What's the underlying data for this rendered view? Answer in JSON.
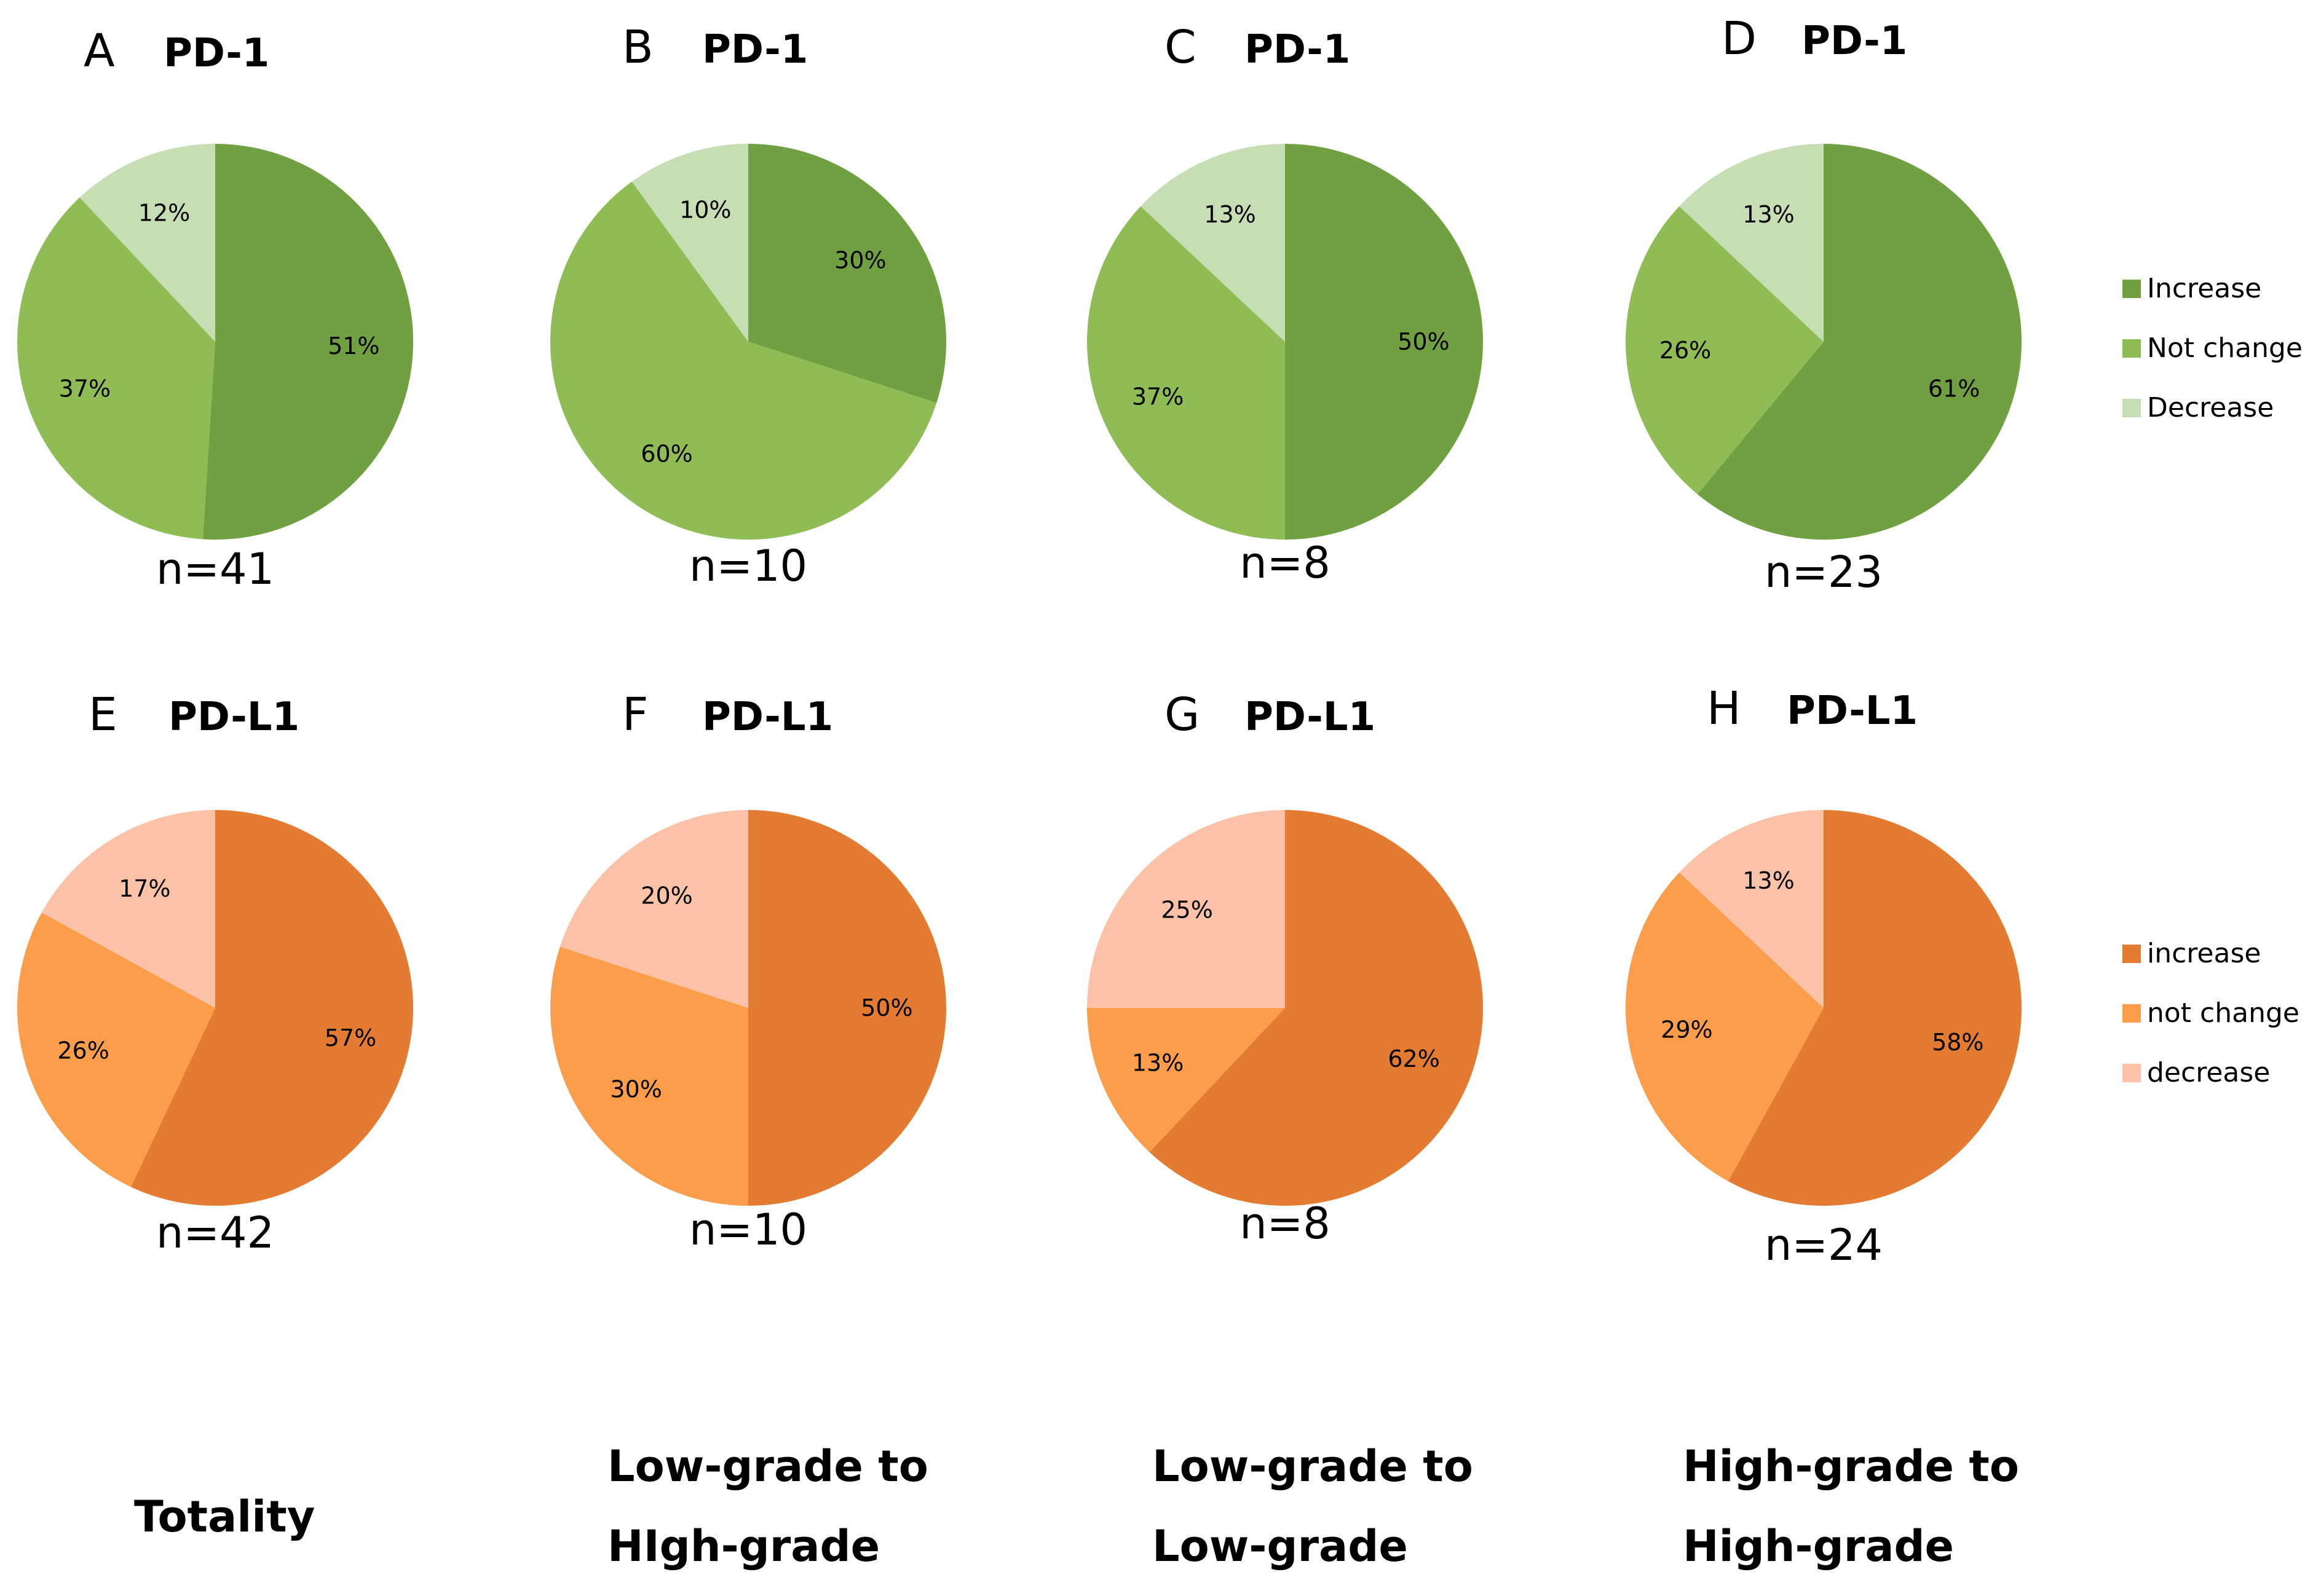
{
  "chart_data": [
    {
      "type": "pie",
      "letter": "A",
      "title": "PD-1",
      "n_label": "n=41",
      "slices": [
        {
          "label": "Increase",
          "value": 51,
          "text": "51%",
          "color": "#70a042"
        },
        {
          "label": "Not change",
          "value": 37,
          "text": "37%",
          "color": "#8fbc55"
        },
        {
          "label": "Decrease",
          "value": 12,
          "text": "12%",
          "color": "#c7deb4"
        }
      ]
    },
    {
      "type": "pie",
      "letter": "B",
      "title": "PD-1",
      "n_label": "n=10",
      "slices": [
        {
          "label": "Increase",
          "value": 30,
          "text": "30%",
          "color": "#70a042"
        },
        {
          "label": "Not change",
          "value": 60,
          "text": "60%",
          "color": "#8fbc55"
        },
        {
          "label": "Decrease",
          "value": 10,
          "text": "10%",
          "color": "#c7deb4"
        }
      ]
    },
    {
      "type": "pie",
      "letter": "C",
      "title": "PD-1",
      "n_label": "n=8",
      "slices": [
        {
          "label": "Increase",
          "value": 50,
          "text": "50%",
          "color": "#70a042"
        },
        {
          "label": "Not change",
          "value": 37,
          "text": "37%",
          "color": "#8fbc55"
        },
        {
          "label": "Decrease",
          "value": 13,
          "text": "13%",
          "color": "#c7deb4"
        }
      ]
    },
    {
      "type": "pie",
      "letter": "D",
      "title": "PD-1",
      "n_label": "n=23",
      "slices": [
        {
          "label": "Increase",
          "value": 61,
          "text": "61%",
          "color": "#70a042"
        },
        {
          "label": "Not change",
          "value": 26,
          "text": "26%",
          "color": "#8fbc55"
        },
        {
          "label": "Decrease",
          "value": 13,
          "text": "13%",
          "color": "#c7deb4"
        }
      ]
    },
    {
      "type": "pie",
      "letter": "E",
      "title": "PD-L1",
      "n_label": "n=42",
      "slices": [
        {
          "label": "increase",
          "value": 57,
          "text": "57%",
          "color": "#e37c32"
        },
        {
          "label": "not change",
          "value": 26,
          "text": "26%",
          "color": "#fb9d4a"
        },
        {
          "label": "decrease",
          "value": 17,
          "text": "17%",
          "color": "#fbc2a7"
        }
      ]
    },
    {
      "type": "pie",
      "letter": "F",
      "title": "PD-L1",
      "n_label": "n=10",
      "slices": [
        {
          "label": "increase",
          "value": 50,
          "text": "50%",
          "color": "#e37c32"
        },
        {
          "label": "not change",
          "value": 30,
          "text": "30%",
          "color": "#fb9d4a"
        },
        {
          "label": "decrease",
          "value": 20,
          "text": "20%",
          "color": "#fbc2a7"
        }
      ]
    },
    {
      "type": "pie",
      "letter": "G",
      "title": "PD-L1",
      "n_label": "n=8",
      "slices": [
        {
          "label": "increase",
          "value": 62,
          "text": "62%",
          "color": "#e37c32"
        },
        {
          "label": "not change",
          "value": 13,
          "text": "13%",
          "color": "#fb9d4a"
        },
        {
          "label": "decrease",
          "value": 25,
          "text": "25%",
          "color": "#fbc2a7"
        }
      ]
    },
    {
      "type": "pie",
      "letter": "H",
      "title": "PD-L1",
      "n_label": "n=24",
      "slices": [
        {
          "label": "increase",
          "value": 58,
          "text": "58%",
          "color": "#e37c32"
        },
        {
          "label": "not change",
          "value": 29,
          "text": "29%",
          "color": "#fb9d4a"
        },
        {
          "label": "decrease",
          "value": 13,
          "text": "13%",
          "color": "#fbc2a7"
        }
      ]
    }
  ],
  "legends": [
    {
      "items": [
        {
          "label": "Increase",
          "color": "#70a042"
        },
        {
          "label": "Not change",
          "color": "#8fbc55"
        },
        {
          "label": "Decrease",
          "color": "#c7deb4"
        }
      ]
    },
    {
      "items": [
        {
          "label": "increase",
          "color": "#e37c32"
        },
        {
          "label": "not change",
          "color": "#fb9d4a"
        },
        {
          "label": "decrease",
          "color": "#fbc2a7"
        }
      ]
    }
  ],
  "footers": [
    {
      "lines": [
        "Totality"
      ]
    },
    {
      "lines": [
        "Low-grade to",
        "HIgh-grade"
      ]
    },
    {
      "lines": [
        "Low-grade to",
        "Low-grade"
      ]
    },
    {
      "lines": [
        "High-grade to",
        "High-grade"
      ]
    }
  ]
}
